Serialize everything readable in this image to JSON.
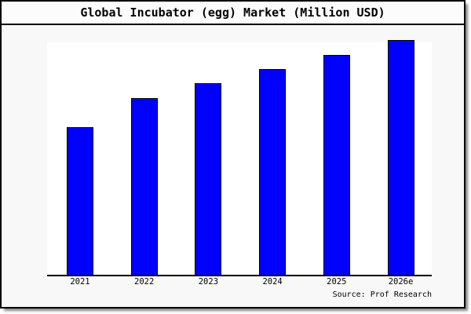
{
  "title": "Global Incubator (egg) Market (Million USD)",
  "source": "Source: Prof Research",
  "colors": {
    "bar_fill": "#0000ff",
    "bar_border": "#000000",
    "frame_background": "#f8f8f8",
    "plot_background": "#ffffff",
    "axis_line": "#000000",
    "text": "#000000",
    "frame_border": "#000000",
    "shadow": "#888888"
  },
  "chart_data": {
    "type": "bar",
    "title": "Global Incubator (egg) Market (Million USD)",
    "categories": [
      "2021",
      "2022",
      "2023",
      "2024",
      "2025",
      "2026e"
    ],
    "values": [
      62.9,
      75.3,
      81.6,
      87.6,
      93.6,
      100
    ],
    "xlabel": "",
    "ylabel": "",
    "ylim": [
      0,
      100
    ],
    "grid": false,
    "legend": false,
    "y_axis_ticks_visible": false
  }
}
